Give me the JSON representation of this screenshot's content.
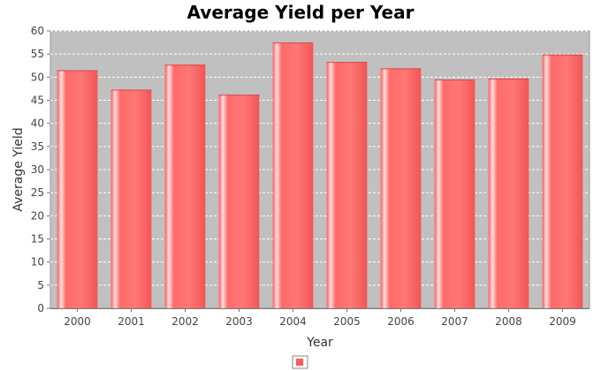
{
  "chart_data": {
    "type": "bar",
    "title": "Average Yield per Year",
    "xlabel": "Year",
    "ylabel": "Average Yield",
    "categories": [
      "2000",
      "2001",
      "2002",
      "2003",
      "2004",
      "2005",
      "2006",
      "2007",
      "2008",
      "2009"
    ],
    "values": [
      51.5,
      47.3,
      52.7,
      46.2,
      57.5,
      53.3,
      51.9,
      49.5,
      49.7,
      54.9
    ],
    "ylim": [
      0,
      60
    ],
    "yticks": [
      "0",
      "5",
      "10",
      "15",
      "20",
      "25",
      "30",
      "35",
      "40",
      "45",
      "50",
      "55",
      "60"
    ],
    "grid": true,
    "legend": "bottom-center",
    "colors": {
      "bar": "#ff6666",
      "bar_light": "#ffd6d6",
      "plot_background": "#c0c0c0",
      "grid": "#ffffff"
    }
  }
}
